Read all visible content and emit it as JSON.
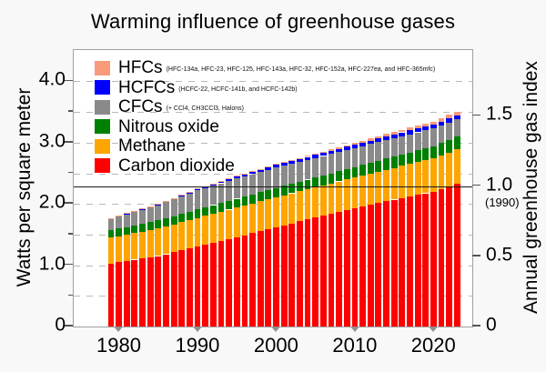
{
  "title": "Warming influence of greenhouse gases",
  "left_axis": {
    "label": "Watts per square meter",
    "ticks": [
      {
        "value": 0,
        "label": "0"
      },
      {
        "value": 1.0,
        "label": "1.0"
      },
      {
        "value": 2.0,
        "label": "2.0"
      },
      {
        "value": 3.0,
        "label": "3.0"
      },
      {
        "value": 4.0,
        "label": "4.0"
      }
    ],
    "minor_tick_values": [
      0.5,
      1.5,
      2.5,
      3.5
    ]
  },
  "right_axis": {
    "label": "Annual greenhouse gas index",
    "ticks": [
      {
        "value": 0,
        "label": "0"
      },
      {
        "value": 0.5,
        "label": "0.5"
      },
      {
        "value": 1.0,
        "label": "1.0"
      },
      {
        "value": 1.5,
        "label": "1.5"
      }
    ],
    "reference_note": "(1990)"
  },
  "x_axis": {
    "ticks": [
      {
        "year": 1980,
        "label": "1980"
      },
      {
        "year": 1990,
        "label": "1990"
      },
      {
        "year": 2000,
        "label": "2000"
      },
      {
        "year": 2010,
        "label": "2010"
      },
      {
        "year": 2020,
        "label": "2020"
      }
    ]
  },
  "chart_data": {
    "type": "bar",
    "stacked": true,
    "title": "Warming influence of greenhouse gases",
    "xlabel": "",
    "ylabel": "Watts per square meter",
    "y2label": "Annual greenhouse gas index",
    "ylim": [
      0,
      4.48
    ],
    "y2lim": [
      0,
      1.95
    ],
    "grid": "dashed horizontal every 0.5 W/m2",
    "legend_position": "upper-left inside plot",
    "aggi_watts_per_index": 2.29,
    "reference_line": {
      "aggi": 1.0,
      "watts": 2.29,
      "note": "(1990)"
    },
    "years": [
      1979,
      1980,
      1981,
      1982,
      1983,
      1984,
      1985,
      1986,
      1987,
      1988,
      1989,
      1990,
      1991,
      1992,
      1993,
      1994,
      1995,
      1996,
      1997,
      1998,
      1999,
      2000,
      2001,
      2002,
      2003,
      2004,
      2005,
      2006,
      2007,
      2008,
      2009,
      2010,
      2011,
      2012,
      2013,
      2014,
      2015,
      2016,
      2017,
      2018,
      2019,
      2020,
      2021,
      2022,
      2023
    ],
    "series": [
      {
        "name": "Carbon dioxide",
        "slug": "carbon-dioxide",
        "color": "#fe0000",
        "sublabel": "",
        "values": [
          1.03,
          1.05,
          1.07,
          1.09,
          1.11,
          1.13,
          1.15,
          1.18,
          1.21,
          1.24,
          1.27,
          1.3,
          1.332,
          1.364,
          1.396,
          1.428,
          1.46,
          1.492,
          1.524,
          1.556,
          1.588,
          1.62,
          1.652,
          1.684,
          1.716,
          1.748,
          1.78,
          1.81,
          1.84,
          1.87,
          1.9,
          1.93,
          1.958,
          1.986,
          2.014,
          2.042,
          2.07,
          2.096,
          2.122,
          2.148,
          2.174,
          2.2,
          2.243,
          2.287,
          2.33
        ]
      },
      {
        "name": "Methane",
        "slug": "methane",
        "color": "#ffa500",
        "sublabel": "",
        "values": [
          0.42,
          0.425,
          0.43,
          0.435,
          0.44,
          0.445,
          0.45,
          0.454,
          0.458,
          0.462,
          0.466,
          0.47,
          0.472,
          0.474,
          0.476,
          0.478,
          0.48,
          0.482,
          0.484,
          0.486,
          0.488,
          0.49,
          0.49,
          0.49,
          0.49,
          0.49,
          0.49,
          0.492,
          0.494,
          0.496,
          0.498,
          0.5,
          0.504,
          0.508,
          0.512,
          0.516,
          0.52,
          0.524,
          0.528,
          0.532,
          0.536,
          0.54,
          0.547,
          0.553,
          0.56
        ]
      },
      {
        "name": "Nitrous oxide",
        "slug": "nitrous-oxide",
        "color": "#008000",
        "sublabel": "",
        "values": [
          0.12,
          0.122,
          0.124,
          0.125,
          0.127,
          0.129,
          0.131,
          0.133,
          0.135,
          0.136,
          0.138,
          0.14,
          0.141,
          0.142,
          0.143,
          0.144,
          0.145,
          0.146,
          0.147,
          0.148,
          0.149,
          0.15,
          0.152,
          0.154,
          0.156,
          0.158,
          0.16,
          0.162,
          0.164,
          0.166,
          0.168,
          0.17,
          0.173,
          0.176,
          0.179,
          0.182,
          0.185,
          0.188,
          0.191,
          0.194,
          0.197,
          0.2,
          0.203,
          0.207,
          0.21
        ]
      },
      {
        "name": "CFCs",
        "slug": "cfcs",
        "color": "#8a8a8a",
        "sublabel": "(+ CCl4, CH3CCl3, Halons)",
        "values": [
          0.19,
          0.2,
          0.21,
          0.22,
          0.23,
          0.24,
          0.25,
          0.262,
          0.274,
          0.286,
          0.298,
          0.31,
          0.314,
          0.318,
          0.322,
          0.326,
          0.33,
          0.33,
          0.33,
          0.33,
          0.33,
          0.33,
          0.328,
          0.326,
          0.324,
          0.322,
          0.32,
          0.318,
          0.316,
          0.314,
          0.312,
          0.31,
          0.308,
          0.306,
          0.304,
          0.302,
          0.3,
          0.298,
          0.296,
          0.294,
          0.292,
          0.29,
          0.287,
          0.283,
          0.28
        ]
      },
      {
        "name": "HCFCs",
        "slug": "hcfcs",
        "color": "#0000fe",
        "sublabel": "(HCFC-22, HCFC-141b, and HCFC-142b)",
        "values": [
          0.01,
          0.011,
          0.012,
          0.013,
          0.013,
          0.014,
          0.015,
          0.017,
          0.019,
          0.021,
          0.023,
          0.025,
          0.027,
          0.029,
          0.031,
          0.033,
          0.035,
          0.037,
          0.039,
          0.041,
          0.043,
          0.045,
          0.046,
          0.047,
          0.048,
          0.049,
          0.05,
          0.051,
          0.052,
          0.053,
          0.054,
          0.055,
          0.056,
          0.057,
          0.058,
          0.059,
          0.06,
          0.061,
          0.062,
          0.063,
          0.064,
          0.065,
          0.065,
          0.065,
          0.065
        ]
      },
      {
        "name": "HFCs",
        "slug": "hfcs",
        "color": "#f99a7b",
        "sublabel": "(HFC-134a, HFC-23, HFC-125, HFC-143a, HFC-32, HFC-152a, HFC-227ea, and HFC-365mfc)",
        "values": [
          0.002,
          0.002,
          0.003,
          0.003,
          0.003,
          0.004,
          0.004,
          0.004,
          0.004,
          0.005,
          0.005,
          0.005,
          0.006,
          0.007,
          0.008,
          0.009,
          0.01,
          0.011,
          0.012,
          0.013,
          0.014,
          0.015,
          0.016,
          0.017,
          0.018,
          0.019,
          0.02,
          0.022,
          0.024,
          0.026,
          0.028,
          0.03,
          0.032,
          0.034,
          0.036,
          0.038,
          0.04,
          0.042,
          0.044,
          0.046,
          0.048,
          0.05,
          0.053,
          0.057,
          0.06
        ]
      }
    ]
  }
}
